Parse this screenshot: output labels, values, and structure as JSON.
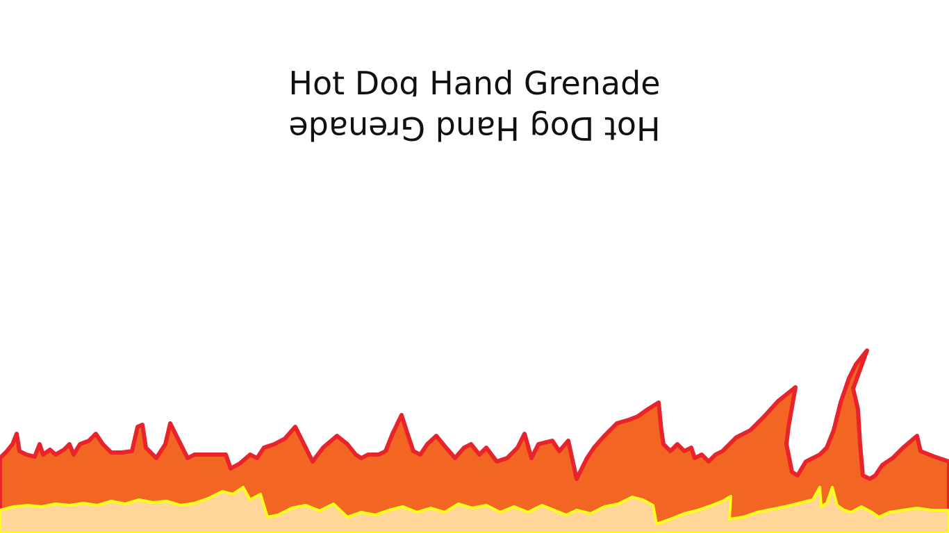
{
  "game": {
    "title": "Hot Dog Hand Grenade",
    "title_mirrored": "Hot Dog Hand Grenade"
  },
  "colors": {
    "background": "#ffffff",
    "text": "#111111",
    "flame_outline": "#e8242a",
    "flame_fill": "#f26522",
    "ember_outline": "#ffff1a",
    "ember_fill": "#ffd59a"
  },
  "decor": {
    "fire_icon": "flames-border"
  }
}
